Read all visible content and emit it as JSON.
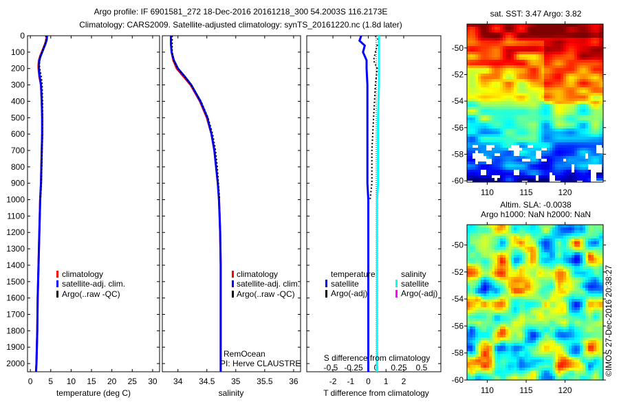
{
  "title": {
    "line1": "Argo profile: IF 6901581_272 18-Dec-2016 20161218_300 54.2003S 116.2173E",
    "line2": "Climatology: CARS2009. Satellite-adjusted climatology: synTS_20161220.nc (1.8d later)"
  },
  "watermark": "©IMOS 27-Dec-2016 20:38:27",
  "colors": {
    "climatology": "#ff0000",
    "satellite": "#0000ff",
    "argo": "#000000",
    "sal_satellite": "#00ffff",
    "sal_argo": "#ff00ff"
  },
  "chart_data": [
    {
      "type": "line",
      "name": "temperature",
      "xlabel": "temperature (deg C)",
      "xlim": [
        -0.7,
        31.7
      ],
      "xticks": [
        0,
        5,
        10,
        15,
        20,
        25,
        30
      ],
      "ylim": [
        0,
        2050
      ],
      "yticks": [
        0,
        100,
        200,
        300,
        400,
        500,
        600,
        700,
        800,
        900,
        1000,
        1100,
        1200,
        1300,
        1400,
        1500,
        1600,
        1700,
        1800,
        1900,
        2000
      ],
      "legend": [
        "climatology",
        "satellite-adj. clim.",
        "Argo(..raw -QC)"
      ],
      "depth": [
        0,
        25,
        50,
        75,
        100,
        125,
        150,
        175,
        200,
        250,
        300,
        400,
        500,
        600,
        700,
        800,
        900,
        1000,
        1200,
        1400,
        1600,
        1800,
        2000,
        2050
      ],
      "series": [
        {
          "name": "climatology",
          "values": [
            4.0,
            3.9,
            3.6,
            3.2,
            2.8,
            2.4,
            2.1,
            2.0,
            2.0,
            2.2,
            2.6,
            2.8,
            2.9,
            2.9,
            2.8,
            2.7,
            2.6,
            2.4,
            2.2,
            2.0,
            1.8,
            1.7,
            1.5,
            1.4
          ]
        },
        {
          "name": "satellite-adj. clim.",
          "values": [
            4.1,
            4.0,
            3.7,
            3.3,
            2.9,
            2.5,
            2.2,
            2.1,
            2.1,
            2.3,
            2.6,
            2.8,
            2.9,
            2.9,
            2.8,
            2.7,
            2.6,
            2.4,
            2.2,
            2.0,
            1.8,
            1.7,
            1.5,
            1.4
          ]
        },
        {
          "name": "Argo(..raw -QC)",
          "values": [
            3.8,
            3.8,
            3.6,
            3.3,
            2.9,
            2.5,
            2.3,
            2.2,
            2.3,
            2.7,
            2.9,
            3.0,
            3.0,
            3.0,
            2.9,
            2.8,
            2.7,
            2.5,
            null,
            null,
            null,
            null,
            null,
            null
          ]
        }
      ]
    },
    {
      "type": "line",
      "name": "salinity",
      "xlabel": "salinity",
      "xlim": [
        33.73,
        36.12
      ],
      "xticks": [
        34,
        34.5,
        35,
        35.5,
        36
      ],
      "ylim": [
        0,
        2050
      ],
      "legend": [
        "climatology",
        "satellite-adj. clim.",
        "Argo(..raw -QC)"
      ],
      "annotation": [
        "RemOcean",
        "PI: Herve CLAUSTRE"
      ],
      "depth": [
        0,
        50,
        100,
        150,
        200,
        250,
        300,
        400,
        500,
        600,
        700,
        800,
        900,
        1000,
        1100,
        1200,
        1400,
        1600,
        1800,
        2000,
        2050
      ],
      "series": [
        {
          "name": "climatology",
          "values": [
            33.88,
            33.88,
            33.89,
            33.92,
            33.98,
            34.1,
            34.22,
            34.38,
            34.5,
            34.58,
            34.63,
            34.66,
            34.69,
            34.71,
            34.72,
            34.73,
            34.74,
            34.74,
            34.74,
            34.74,
            34.74
          ]
        },
        {
          "name": "satellite-adj. clim.",
          "values": [
            33.88,
            33.88,
            33.89,
            33.93,
            34.0,
            34.12,
            34.23,
            34.39,
            34.51,
            34.58,
            34.63,
            34.66,
            34.69,
            34.71,
            34.72,
            34.73,
            34.74,
            34.74,
            34.74,
            34.74,
            34.74
          ]
        },
        {
          "name": "Argo(..raw -QC)",
          "values": [
            33.9,
            33.9,
            33.9,
            33.93,
            34.0,
            34.12,
            34.23,
            34.4,
            34.52,
            34.6,
            34.65,
            34.68,
            34.7,
            34.72,
            null,
            null,
            null,
            null,
            null,
            null,
            null
          ]
        }
      ]
    },
    {
      "type": "line",
      "name": "difference",
      "xlabel": "T difference from climatology",
      "xlabel2": "S difference from climatology",
      "xlim": [
        -3.48,
        4.1
      ],
      "xticks": [
        -2,
        -1,
        0,
        1,
        2
      ],
      "xlim2": [
        -0.5,
        0.5
      ],
      "xticks2": [
        "-0.5",
        "-0.25",
        "0",
        "0.25",
        "0.5"
      ],
      "legend": {
        "temperature_title": "temperature",
        "salinity_title": "salinity",
        "items": [
          "satellite",
          "Argo(-adj)",
          "satellite",
          "Argo(-adj)"
        ]
      },
      "depth": [
        0,
        30,
        60,
        100,
        150,
        200,
        300,
        500,
        700,
        900,
        1000,
        1100,
        1500,
        2000,
        2050
      ],
      "series": [
        {
          "name": "T satellite",
          "values": [
            -0.4,
            -0.5,
            -0.2,
            -0.3,
            -0.1,
            -0.1,
            -0.05,
            -0.05,
            -0.05,
            -0.05,
            0,
            0,
            0,
            0,
            0
          ]
        },
        {
          "name": "T Argo(-adj)",
          "values": [
            0.4,
            0.6,
            0.5,
            0.4,
            0.3,
            0.5,
            0.4,
            0.3,
            0.2,
            0.2,
            0.1,
            null,
            null,
            null,
            null
          ]
        },
        {
          "name": "S satellite",
          "values": [
            0.03,
            0.03,
            0.03,
            0.03,
            0.03,
            0.03,
            0.03,
            0.02,
            0.02,
            0.02,
            0.01,
            0.01,
            0.01,
            0.01,
            0.01
          ]
        }
      ]
    },
    {
      "type": "heatmap",
      "name": "sst-map",
      "title": "sat. SST: 3.47 Argo: 3.82",
      "xticks": [
        110,
        115,
        120
      ],
      "yticks": [
        -50,
        -52,
        -54,
        -56,
        -58,
        -60
      ],
      "xlim": [
        107.4,
        124.9
      ],
      "ylim": [
        -60.1,
        -48.2
      ]
    },
    {
      "type": "heatmap",
      "name": "sla-map",
      "title": "Altim. SLA: -0.0038",
      "subtitle": "Argo h1000: NaN h2000: NaN",
      "xticks": [
        110,
        115,
        120
      ],
      "yticks": [
        -50,
        -52,
        -54,
        -56,
        -58,
        -60
      ],
      "xlim": [
        107.4,
        124.9
      ],
      "ylim": [
        -60,
        -48.5
      ]
    }
  ]
}
